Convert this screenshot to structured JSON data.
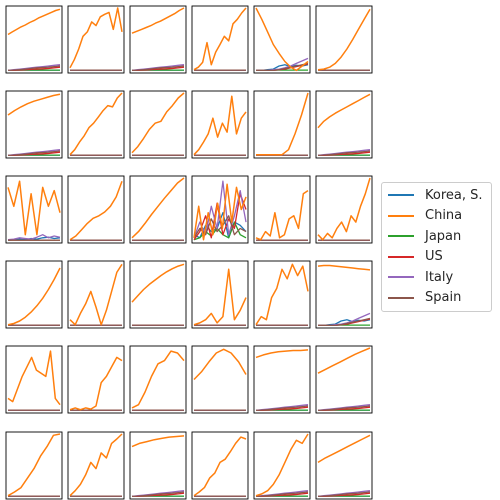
{
  "chart_data": {
    "type": "line",
    "layout": "small-multiples grid, 6 rows x 6 columns",
    "axes": "no ticks, no tick labels, no axis titles",
    "series": [
      {
        "name": "Korea, S.",
        "color": "#1f77b4"
      },
      {
        "name": "China",
        "color": "#ff7f0e"
      },
      {
        "name": "Japan",
        "color": "#2ca02c"
      },
      {
        "name": "US",
        "color": "#d62728"
      },
      {
        "name": "Italy",
        "color": "#9467bd"
      },
      {
        "name": "Spain",
        "color": "#8c564b"
      }
    ],
    "legend": {
      "placement": "right, vertically centered"
    },
    "panels": [
      {
        "china": [
          0.58,
          0.62,
          0.66,
          0.7,
          0.73,
          0.77,
          0.8,
          0.84,
          0.87,
          0.9,
          0.93,
          0.96,
          0.98
        ],
        "others": "rising"
      },
      {
        "china": [
          0.05,
          0.18,
          0.35,
          0.55,
          0.62,
          0.78,
          0.72,
          0.86,
          0.9,
          0.93,
          0.66,
          1.0,
          0.62
        ],
        "others": "flat"
      },
      {
        "china": [
          0.6,
          0.63,
          0.66,
          0.69,
          0.72,
          0.76,
          0.79,
          0.83,
          0.87,
          0.91,
          0.96,
          1.0
        ],
        "others": "rising"
      },
      {
        "china": [
          0.02,
          0.06,
          0.14,
          0.45,
          0.1,
          0.3,
          0.42,
          0.55,
          0.48,
          0.75,
          0.82,
          0.92,
          1.0
        ],
        "others": "flat"
      },
      {
        "china": [
          1.0,
          0.82,
          0.62,
          0.42,
          0.28,
          0.15,
          0.06,
          0.01,
          0.08,
          0.15
        ],
        "others": "late-rise"
      },
      {
        "china": [
          0.02,
          0.03,
          0.06,
          0.12,
          0.22,
          0.35,
          0.5,
          0.66,
          0.82,
          0.98
        ],
        "others": "flat"
      },
      {
        "china": [
          0.65,
          0.72,
          0.78,
          0.83,
          0.87,
          0.9,
          0.93,
          0.96,
          0.98
        ],
        "others": "rising"
      },
      {
        "china": [
          0.02,
          0.1,
          0.22,
          0.32,
          0.45,
          0.52,
          0.62,
          0.72,
          0.8,
          0.78,
          0.92,
          1.0
        ],
        "others": "flat"
      },
      {
        "china": [
          0.05,
          0.15,
          0.28,
          0.42,
          0.52,
          0.55,
          0.7,
          0.8,
          0.92,
          1.0
        ],
        "others": "flat"
      },
      {
        "china": [
          0.02,
          0.1,
          0.22,
          0.35,
          0.6,
          0.3,
          0.52,
          0.38,
          0.95,
          0.35,
          0.6,
          0.7
        ],
        "others": "flat"
      },
      {
        "china": [
          0.02,
          0.02,
          0.02,
          0.02,
          0.02,
          0.1,
          0.35,
          0.65,
          1.0
        ],
        "others": "flat"
      },
      {
        "china": [
          0.45,
          0.55,
          0.62,
          0.68,
          0.73,
          0.78,
          0.83,
          0.88,
          0.93,
          0.98
        ],
        "others": "rising"
      },
      {
        "china": [
          0.85,
          0.55,
          0.95,
          0.1,
          0.75,
          0.1,
          0.85,
          0.55,
          0.8,
          0.45
        ],
        "others": "noisy"
      },
      {
        "china": [
          0.02,
          0.08,
          0.18,
          0.28,
          0.36,
          0.4,
          0.46,
          0.55,
          0.7,
          0.95
        ],
        "others": "flat"
      },
      {
        "china": [
          0.05,
          0.15,
          0.28,
          0.42,
          0.55,
          0.68,
          0.8,
          0.92,
          1.0
        ],
        "others": "flat"
      },
      {
        "china": [
          0.05,
          0.55,
          0.02,
          0.45,
          0.1,
          0.6,
          0.2,
          0.9,
          0.3,
          0.85,
          0.5,
          0.7
        ],
        "others": "erratic"
      },
      {
        "china": [
          0.05,
          0.02,
          0.15,
          0.08,
          0.45,
          0.05,
          0.1,
          0.35,
          0.4,
          0.2,
          0.75,
          0.8
        ],
        "others": "flat"
      },
      {
        "china": [
          0.1,
          0.02,
          0.12,
          0.05,
          0.2,
          0.3,
          0.15,
          0.4,
          0.3,
          0.55,
          0.75,
          1.0
        ],
        "others": "flat"
      },
      {
        "china": [
          0.02,
          0.04,
          0.08,
          0.14,
          0.22,
          0.32,
          0.44,
          0.58,
          0.74,
          0.92
        ],
        "others": "flat"
      },
      {
        "china": [
          0.1,
          0.02,
          0.2,
          0.35,
          0.55,
          0.3,
          0.02,
          0.25,
          0.55,
          0.85,
          0.98
        ],
        "others": "flat"
      },
      {
        "china": [
          0.38,
          0.48,
          0.58,
          0.66,
          0.73,
          0.8,
          0.86,
          0.91,
          0.95,
          0.98
        ],
        "others": "flat"
      },
      {
        "china": [
          0.02,
          0.05,
          0.1,
          0.2,
          0.05,
          0.15,
          0.9,
          0.1,
          0.25,
          0.45
        ],
        "others": "flat"
      },
      {
        "china": [
          0.02,
          0.15,
          0.1,
          0.45,
          0.6,
          0.9,
          0.75,
          0.98,
          0.8,
          0.95,
          0.55
        ],
        "others": "flat"
      },
      {
        "china": [
          0.95,
          0.96,
          0.96,
          0.95,
          0.94,
          0.93,
          0.92,
          0.91,
          0.9,
          0.89
        ],
        "others": "late-rise"
      },
      {
        "china": [
          0.2,
          0.15,
          0.35,
          0.55,
          0.7,
          0.85,
          0.65,
          0.6,
          0.55,
          0.95,
          0.2,
          0.1
        ],
        "others": "flat"
      },
      {
        "china": [
          0.02,
          0.05,
          0.02,
          0.05,
          0.03,
          0.08,
          0.45,
          0.55,
          0.7,
          0.85,
          0.8
        ],
        "others": "flat"
      },
      {
        "china": [
          0.05,
          0.1,
          0.3,
          0.55,
          0.75,
          0.8,
          0.95,
          0.92,
          0.8
        ],
        "others": "flat"
      },
      {
        "china": [
          0.5,
          0.62,
          0.78,
          0.92,
          0.98,
          0.92,
          0.78,
          0.58
        ],
        "others": "flat"
      },
      {
        "china": [
          0.85,
          0.89,
          0.92,
          0.94,
          0.95,
          0.96,
          0.96,
          0.97
        ],
        "others": "rising"
      },
      {
        "china": [
          0.6,
          0.66,
          0.72,
          0.78,
          0.84,
          0.9,
          0.95,
          1.0
        ],
        "others": "rising"
      },
      {
        "china": [
          0.02,
          0.08,
          0.15,
          0.3,
          0.45,
          0.65,
          0.8,
          0.98,
          1.0
        ],
        "others": "flat"
      },
      {
        "china": [
          0.02,
          0.1,
          0.2,
          0.35,
          0.55,
          0.45,
          0.7,
          0.62,
          0.85,
          0.92,
          1.0
        ],
        "others": "flat"
      },
      {
        "china": [
          0.8,
          0.85,
          0.88,
          0.91,
          0.93,
          0.95,
          0.96,
          0.97
        ],
        "others": "rising"
      },
      {
        "china": [
          0.02,
          0.08,
          0.15,
          0.3,
          0.38,
          0.55,
          0.6,
          0.72,
          0.85,
          0.95,
          0.92
        ],
        "others": "flat"
      },
      {
        "china": [
          0.02,
          0.05,
          0.1,
          0.2,
          0.35,
          0.55,
          0.75,
          0.9,
          0.85,
          1.0
        ],
        "others": "rising"
      },
      {
        "china": [
          0.55,
          0.62,
          0.68,
          0.74,
          0.8,
          0.86,
          0.92,
          0.98
        ],
        "others": "rising"
      }
    ]
  }
}
